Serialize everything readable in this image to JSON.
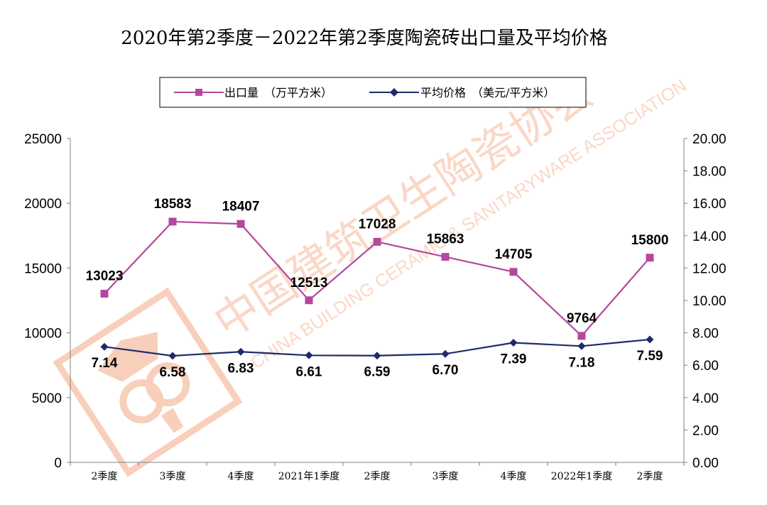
{
  "chart_data": {
    "type": "line",
    "title": "2020年第2季度－2022年第2季度陶瓷砖出口量及平均价格",
    "categories": [
      "2季度",
      "3季度",
      "4季度",
      "2021年1季度",
      "2季度",
      "3季度",
      "4季度",
      "2022年1季度",
      "2季度"
    ],
    "y_left": {
      "ylim": [
        0,
        25000
      ],
      "ticks": [
        "0",
        "5000",
        "10000",
        "15000",
        "20000",
        "25000"
      ]
    },
    "y_right": {
      "ylim": [
        0,
        20
      ],
      "ticks": [
        "0.00",
        "2.00",
        "4.00",
        "6.00",
        "8.00",
        "10.00",
        "12.00",
        "14.00",
        "16.00",
        "18.00",
        "20.00"
      ]
    },
    "legend_position": "top-center",
    "series": [
      {
        "name": "出口量　（万平方米）",
        "axis": "left",
        "marker": "square",
        "color": "#b5489c",
        "values": [
          13023,
          18583,
          18407,
          12513,
          17028,
          15863,
          14705,
          9764,
          15800
        ],
        "labels": [
          "13023",
          "18583",
          "18407",
          "12513",
          "17028",
          "15863",
          "14705",
          "9764",
          "15800"
        ]
      },
      {
        "name": "平均价格　（美元/平方米）",
        "axis": "right",
        "marker": "diamond",
        "color": "#1f2a6b",
        "values": [
          7.14,
          6.58,
          6.83,
          6.61,
          6.59,
          6.7,
          7.39,
          7.18,
          7.59
        ],
        "labels": [
          "7.14",
          "6.58",
          "6.83",
          "6.61",
          "6.59",
          "6.70",
          "7.39",
          "7.18",
          "7.59"
        ]
      }
    ]
  },
  "watermark": {
    "cn": "中国建筑卫生陶瓷协会",
    "en": "CHINA BUILDING CERAMIC & SANITARYWARE ASSOCIATION",
    "color": "#f6b89a"
  }
}
